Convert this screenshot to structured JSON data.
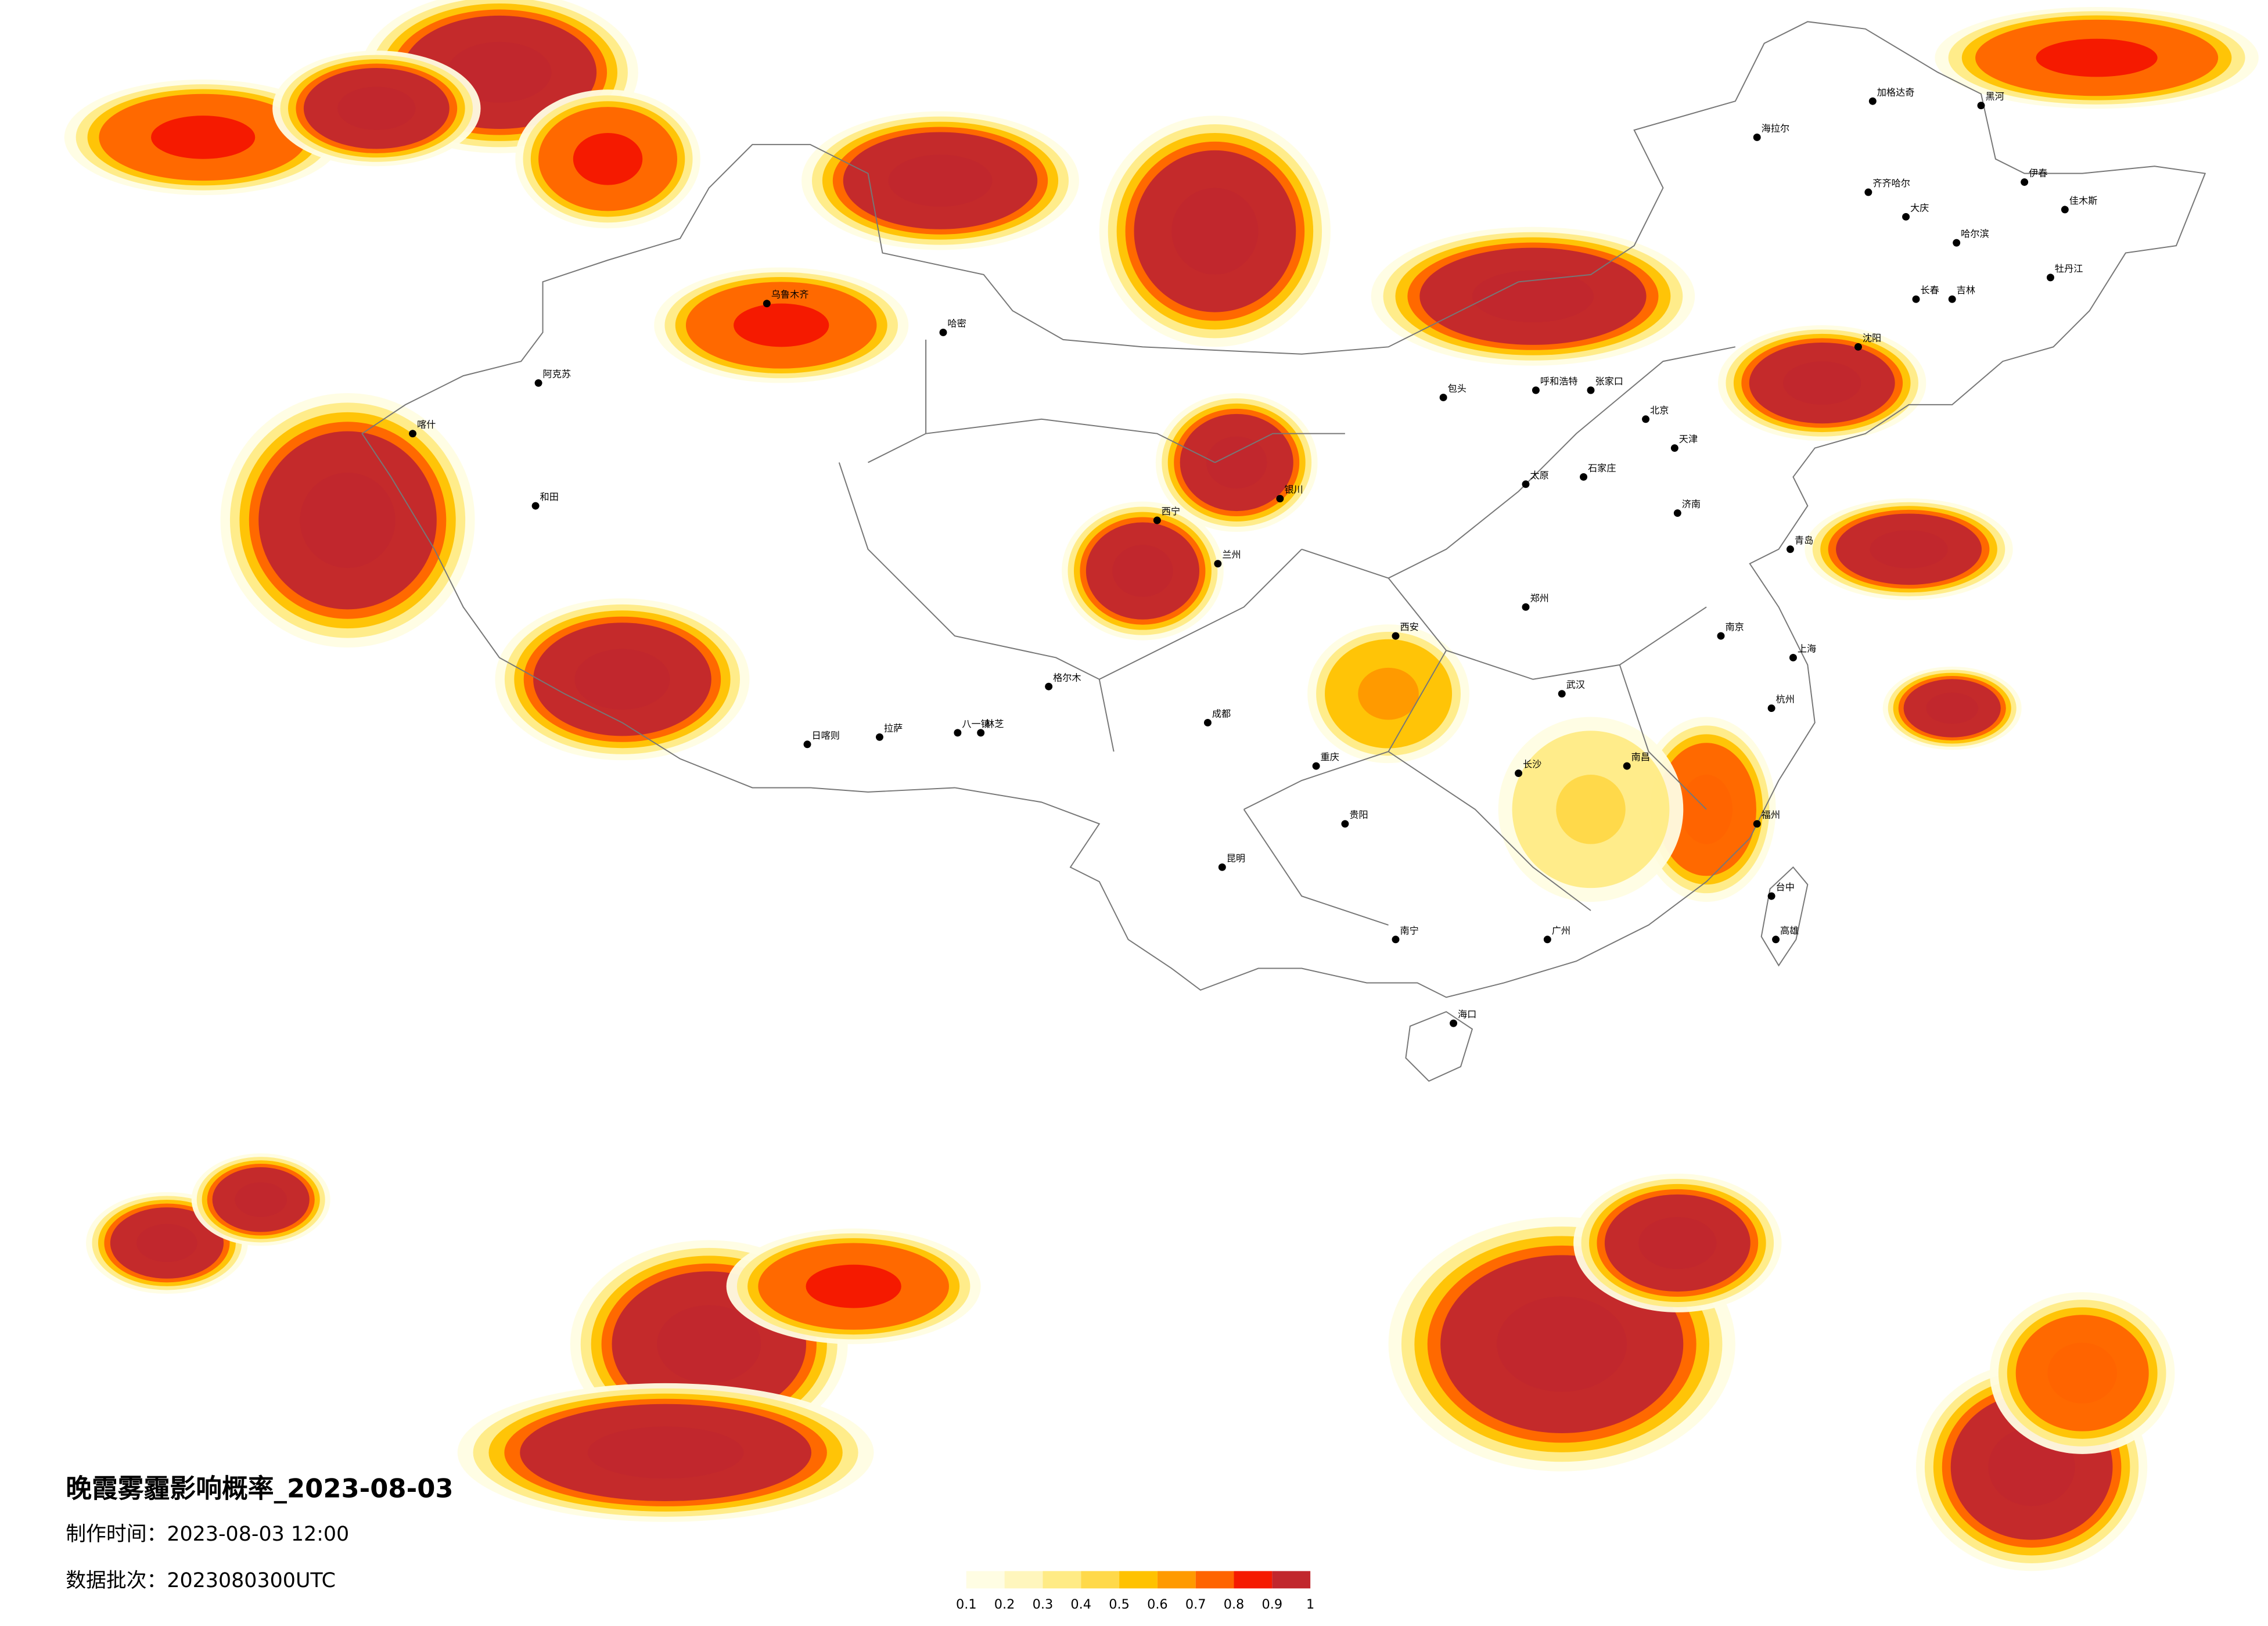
{
  "header": {
    "title": "晚霞雾霾影响概率_2023-08-03",
    "production_time": "制作时间：2023-08-03 12:00",
    "data_batch": "数据批次：2023080300UTC"
  },
  "legend": {
    "ticks": [
      0.1,
      0.2,
      0.3,
      0.4,
      0.5,
      0.6,
      0.7,
      0.8,
      0.9,
      1
    ],
    "colors": [
      "#fffde3",
      "#fff6bd",
      "#ffeb85",
      "#ffd94a",
      "#ffc200",
      "#ff9a00",
      "#ff6400",
      "#f51a00",
      "#c1272d"
    ]
  },
  "cities": [
    "海拉尔",
    "加格达奇",
    "黑河",
    "齐齐哈尔",
    "大庆",
    "哈尔滨",
    "伊春",
    "佳木斯",
    "牡丹江",
    "长春",
    "吉林",
    "沈阳",
    "呼和浩特",
    "包头",
    "张家口",
    "北京",
    "天津",
    "石家庄",
    "太原",
    "济南",
    "青岛",
    "郑州",
    "西安",
    "兰州",
    "银川",
    "西宁",
    "乌鲁木齐",
    "哈密",
    "喀什",
    "阿克苏",
    "和田",
    "拉萨",
    "日喀则",
    "八一镇",
    "林芝",
    "格尔木",
    "成都",
    "重庆",
    "武汉",
    "南京",
    "上海",
    "杭州",
    "长沙",
    "南昌",
    "福州",
    "贵阳",
    "昆明",
    "南宁",
    "广州",
    "海口",
    "台中",
    "高雄"
  ]
}
